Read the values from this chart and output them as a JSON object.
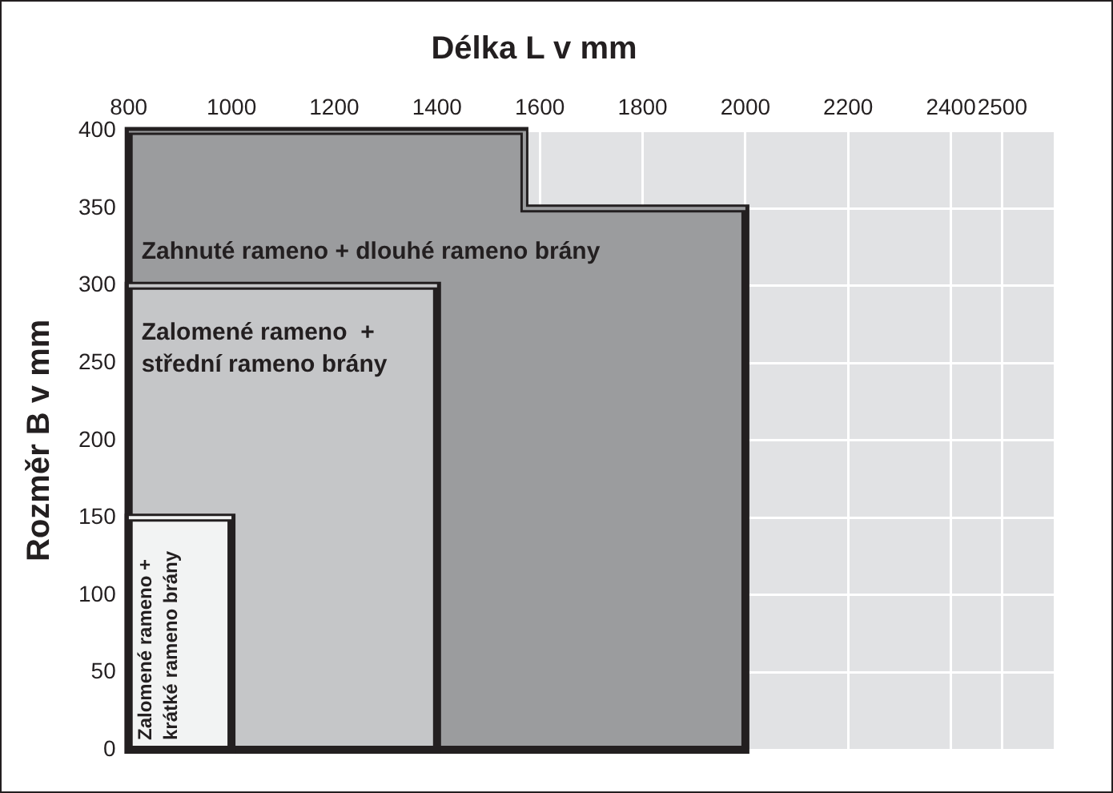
{
  "chart_data": {
    "type": "area",
    "title": "Délka L v mm",
    "ylabel": "Rozměr B v mm",
    "xlim": [
      800,
      2600
    ],
    "xticks": [
      800,
      1000,
      1200,
      1400,
      1600,
      1800,
      2000,
      2200,
      2400,
      2500
    ],
    "ylim": [
      0,
      400
    ],
    "yticks": [
      0,
      50,
      100,
      150,
      200,
      250,
      300,
      350,
      400
    ],
    "grid": true,
    "legend": false,
    "series": [
      {
        "name": "Zahnuté rameno + dlouhé rameno brány",
        "color": "#9b9c9e",
        "x": [
          800,
          1570,
          1570,
          2000
        ],
        "values": [
          400,
          400,
          350,
          350
        ]
      },
      {
        "name": "Zalomené rameno  +\nstřední rameno brány",
        "color": "#c5c6c8",
        "x": [
          800,
          1400
        ],
        "values": [
          300,
          300
        ]
      },
      {
        "name": "Zalomené rameno +\nkrátké rameno brány",
        "color": "#f2f3f3",
        "x": [
          800,
          1000
        ],
        "values": [
          150,
          150
        ]
      }
    ]
  }
}
